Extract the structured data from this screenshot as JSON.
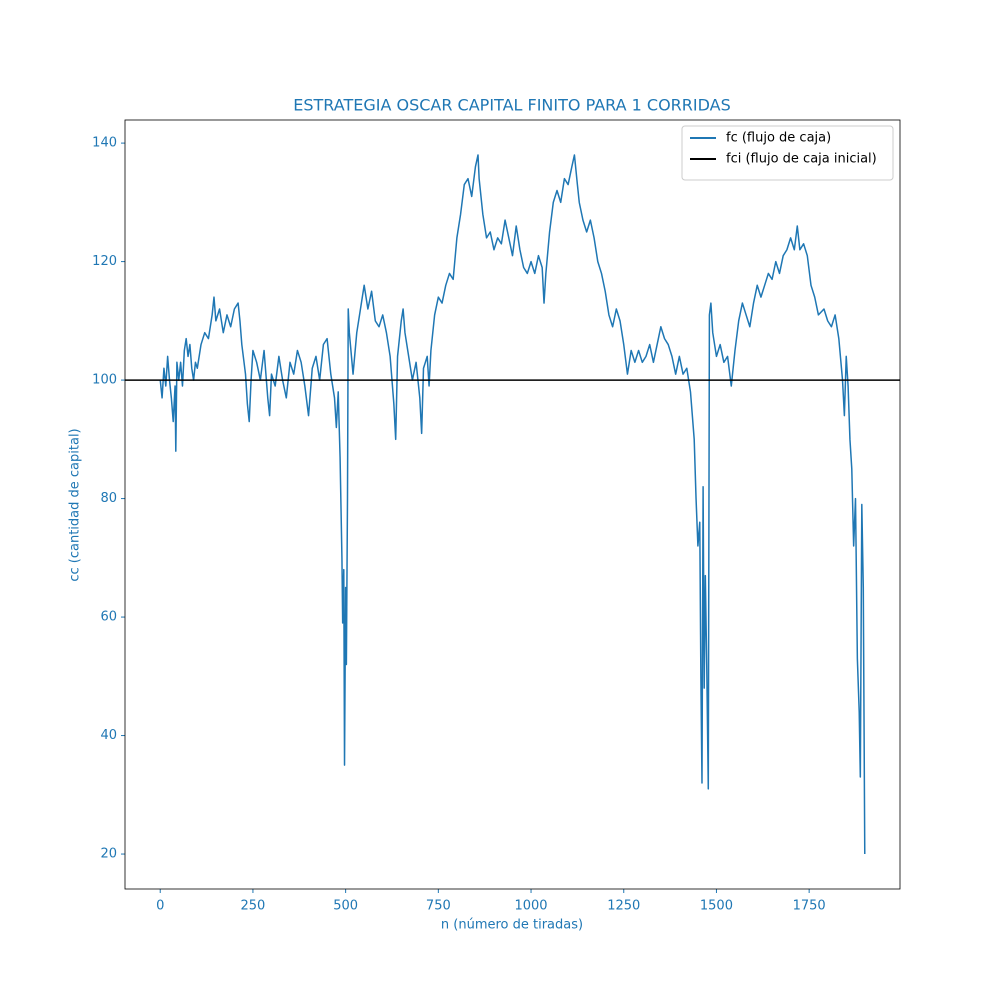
{
  "chart_data": {
    "type": "line",
    "title": "ESTRATEGIA OSCAR CAPITAL FINITO PARA 1 CORRIDAS",
    "xlabel": "n (número de tiradas)",
    "ylabel": "cc (cantidad de capital)",
    "x": [
      0,
      5,
      10,
      15,
      20,
      25,
      30,
      35,
      40,
      42,
      45,
      50,
      55,
      60,
      65,
      70,
      75,
      80,
      85,
      90,
      95,
      100,
      110,
      120,
      130,
      140,
      145,
      150,
      160,
      170,
      180,
      190,
      200,
      210,
      215,
      220,
      230,
      235,
      240,
      245,
      250,
      260,
      270,
      280,
      290,
      295,
      300,
      310,
      320,
      330,
      340,
      350,
      360,
      370,
      380,
      390,
      400,
      410,
      420,
      430,
      440,
      450,
      460,
      470,
      475,
      480,
      485,
      490,
      492,
      495,
      497,
      500,
      502,
      505,
      507,
      510,
      520,
      530,
      540,
      550,
      560,
      570,
      580,
      590,
      600,
      610,
      620,
      630,
      635,
      640,
      650,
      655,
      660,
      670,
      680,
      690,
      700,
      705,
      710,
      715,
      720,
      725,
      730,
      740,
      750,
      760,
      770,
      780,
      790,
      800,
      810,
      820,
      830,
      840,
      850,
      857,
      860,
      870,
      880,
      890,
      900,
      910,
      920,
      930,
      940,
      950,
      960,
      970,
      980,
      990,
      1000,
      1010,
      1020,
      1030,
      1035,
      1040,
      1050,
      1060,
      1070,
      1080,
      1090,
      1100,
      1110,
      1117,
      1125,
      1130,
      1140,
      1150,
      1160,
      1170,
      1180,
      1190,
      1200,
      1210,
      1220,
      1230,
      1240,
      1250,
      1260,
      1270,
      1280,
      1290,
      1300,
      1310,
      1320,
      1330,
      1340,
      1350,
      1360,
      1370,
      1380,
      1390,
      1400,
      1410,
      1420,
      1430,
      1440,
      1445,
      1450,
      1455,
      1458,
      1461,
      1464,
      1467,
      1470,
      1474,
      1478,
      1481,
      1485,
      1490,
      1500,
      1510,
      1520,
      1530,
      1540,
      1550,
      1560,
      1570,
      1580,
      1590,
      1600,
      1610,
      1620,
      1630,
      1640,
      1650,
      1660,
      1670,
      1680,
      1690,
      1700,
      1710,
      1718,
      1725,
      1735,
      1745,
      1755,
      1765,
      1775,
      1790,
      1800,
      1810,
      1820,
      1830,
      1840,
      1845,
      1850,
      1855,
      1860,
      1865,
      1870,
      1875,
      1880,
      1885,
      1888,
      1892,
      1896,
      1900
    ],
    "series": [
      {
        "name": "fc (flujo de caja)",
        "color": "#1f77b4",
        "values": [
          100,
          97,
          102,
          99,
          104,
          100,
          97,
          93,
          99,
          88,
          103,
          100,
          103,
          99,
          105,
          107,
          104,
          106,
          102,
          100,
          103,
          102,
          106,
          108,
          107,
          111,
          114,
          110,
          112,
          108,
          111,
          109,
          112,
          113,
          110,
          106,
          101,
          96,
          93,
          100,
          105,
          103,
          100,
          105,
          97,
          94,
          101,
          99,
          104,
          100,
          97,
          103,
          101,
          105,
          103,
          99,
          94,
          102,
          104,
          100,
          106,
          107,
          101,
          97,
          92,
          98,
          87,
          70,
          59,
          68,
          35,
          65,
          52,
          80,
          112,
          108,
          101,
          108,
          112,
          116,
          112,
          115,
          110,
          109,
          111,
          108,
          104,
          96,
          90,
          104,
          110,
          112,
          108,
          104,
          100,
          103,
          97,
          91,
          102,
          103,
          104,
          99,
          105,
          111,
          114,
          113,
          116,
          118,
          117,
          124,
          128,
          133,
          134,
          131,
          136,
          138,
          134,
          128,
          124,
          125,
          122,
          124,
          123,
          127,
          124,
          121,
          126,
          122,
          119,
          118,
          120,
          118,
          121,
          119,
          113,
          118,
          125,
          130,
          132,
          130,
          134,
          133,
          136,
          138,
          133,
          130,
          127,
          125,
          127,
          124,
          120,
          118,
          115,
          111,
          109,
          112,
          110,
          106,
          101,
          105,
          103,
          105,
          103,
          104,
          106,
          103,
          106,
          109,
          107,
          106,
          104,
          101,
          104,
          101,
          102,
          98,
          90,
          80,
          72,
          76,
          50,
          32,
          82,
          48,
          67,
          51,
          31,
          111,
          113,
          108,
          104,
          106,
          103,
          104,
          99,
          105,
          110,
          113,
          111,
          109,
          113,
          116,
          114,
          116,
          118,
          117,
          120,
          118,
          121,
          122,
          124,
          122,
          126,
          122,
          123,
          121,
          116,
          114,
          111,
          112,
          110,
          109,
          111,
          107,
          100,
          94,
          104,
          99,
          90,
          85,
          72,
          80,
          53,
          44,
          33,
          79,
          65,
          20
        ]
      }
    ],
    "hline": {
      "name": "fci (flujo de caja inicial)",
      "color": "#000000",
      "value": 100
    },
    "xlim": [
      -95,
      1995
    ],
    "ylim": [
      14.1,
      143.9
    ],
    "xticks": [
      0,
      250,
      500,
      750,
      1000,
      1250,
      1500,
      1750
    ],
    "yticks": [
      20,
      40,
      60,
      80,
      100,
      120,
      140
    ],
    "legend": "upper right"
  }
}
